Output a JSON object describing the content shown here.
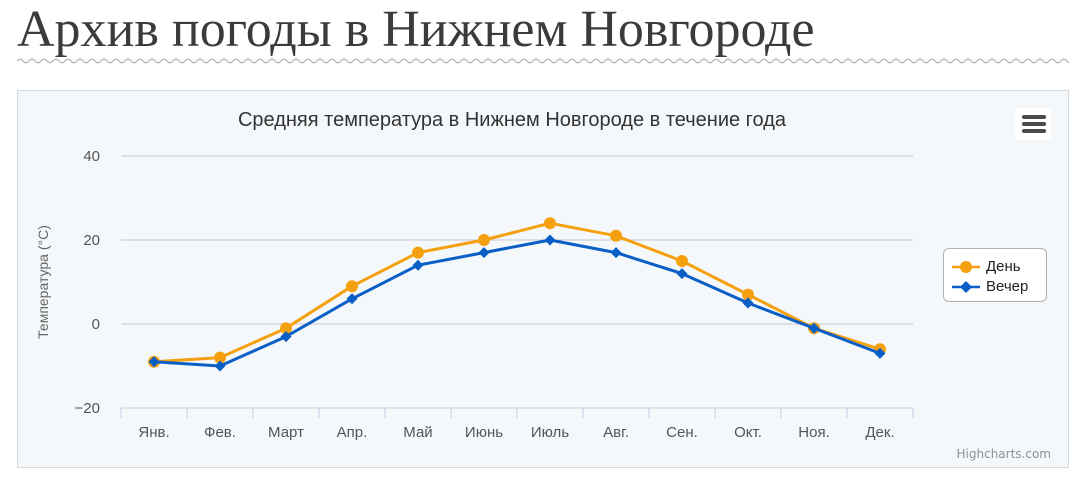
{
  "page": {
    "title": "Архив погоды в Нижнем Новгороде"
  },
  "chart_data": {
    "type": "line",
    "title": "Средняя температура в Нижнем Новгороде в течение года",
    "ylabel": "Температура (°C)",
    "xlabel": "",
    "categories": [
      "Янв.",
      "Фев.",
      "Март",
      "Апр.",
      "Май",
      "Июнь",
      "Июль",
      "Авг.",
      "Сен.",
      "Окт.",
      "Ноя.",
      "Дек."
    ],
    "ylim": [
      -20,
      40
    ],
    "yticks": [
      40,
      20,
      0,
      -20
    ],
    "grid": true,
    "legend_position": "right",
    "series": [
      {
        "name": "День",
        "color": "#f5a10f",
        "marker": "circle",
        "values": [
          -9,
          -8,
          -1,
          9,
          17,
          20,
          24,
          21,
          15,
          7,
          -1,
          -6
        ]
      },
      {
        "name": "Вечер",
        "color": "#0a5fc7",
        "marker": "diamond",
        "values": [
          -9,
          -10,
          -3,
          6,
          14,
          17,
          20,
          17,
          12,
          5,
          -1,
          -7
        ]
      }
    ]
  },
  "credits": "Highcharts.com",
  "icons": {
    "menu": "hamburger-menu-icon"
  }
}
